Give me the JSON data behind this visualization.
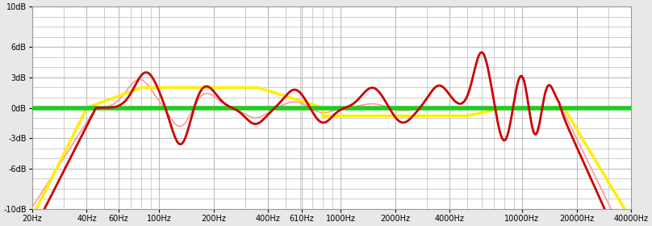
{
  "background_color": "#e8e8e8",
  "plot_bg_color": "#ffffff",
  "grid_color": "#bbbbbb",
  "freq_min": 20,
  "freq_max": 40000,
  "db_min": -10,
  "db_max": 10,
  "yticks": [
    -10,
    -6,
    -3,
    0,
    3,
    6,
    10
  ],
  "ytick_labels": [
    "-10dB",
    "-6dB",
    "-3dB",
    "0dB",
    "3dB",
    "6dB",
    "10dB"
  ],
  "xtick_freqs": [
    20,
    40,
    60,
    100,
    200,
    400,
    610,
    1000,
    2000,
    4000,
    10000,
    20000,
    40000
  ],
  "xtick_labels": [
    "20Hz",
    "40Hz",
    "60Hz",
    "100Hz",
    "200Hz",
    "400Hz",
    "610Hz",
    "1000Hz",
    "2000Hz",
    "4000Hz",
    "10000Hz",
    "20000Hz",
    "40000Hz"
  ],
  "green_line_db": 0,
  "green_color": "#22cc22",
  "green_linewidth": 4.0,
  "yellow_color": "#ffee00",
  "yellow_linewidth": 2.5,
  "red_color": "#cc0000",
  "red_linewidth": 2.0,
  "pink_color": "#ff9999",
  "pink_linewidth": 1.2
}
